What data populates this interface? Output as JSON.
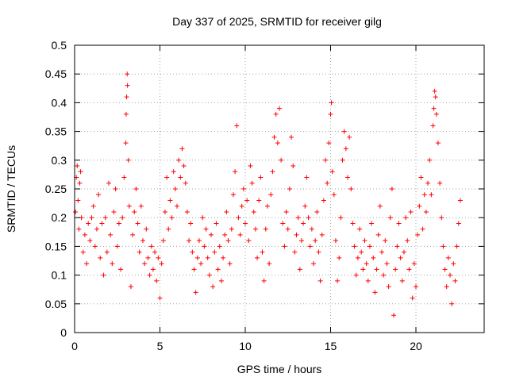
{
  "chart_data": {
    "type": "scatter",
    "title": "Day 337 of 2025, SRMTID for receiver gilg",
    "xlabel": "GPS time / hours",
    "ylabel": "SRMTID / TECUs",
    "xlim": [
      0,
      24
    ],
    "ylim": [
      0,
      0.5
    ],
    "xticks": [
      0,
      5,
      10,
      15,
      20
    ],
    "xtick_labels": [
      "0",
      "5",
      "10",
      "15",
      "20"
    ],
    "yticks": [
      0,
      0.05,
      0.1,
      0.15,
      0.2,
      0.25,
      0.3,
      0.35,
      0.4,
      0.45,
      0.5
    ],
    "ytick_labels": [
      "0",
      "0.05",
      "0.1",
      "0.15",
      "0.2",
      "0.25",
      "0.3",
      "0.35",
      "0.4",
      "0.45",
      "0.5"
    ],
    "grid": true,
    "marker": "+",
    "color": "#ff0000",
    "x_data_range": [
      0,
      22.6
    ],
    "series": [
      {
        "name": "SRMTID",
        "points": [
          [
            0.05,
            0.21
          ],
          [
            0.1,
            0.27
          ],
          [
            0.15,
            0.29
          ],
          [
            0.2,
            0.23
          ],
          [
            0.25,
            0.18
          ],
          [
            0.3,
            0.26
          ],
          [
            0.35,
            0.28
          ],
          [
            0.4,
            0.2
          ],
          [
            0.5,
            0.14
          ],
          [
            0.6,
            0.17
          ],
          [
            0.7,
            0.12
          ],
          [
            0.8,
            0.19
          ],
          [
            0.9,
            0.16
          ],
          [
            1.0,
            0.2
          ],
          [
            1.1,
            0.22
          ],
          [
            1.2,
            0.15
          ],
          [
            1.3,
            0.18
          ],
          [
            1.4,
            0.24
          ],
          [
            1.5,
            0.13
          ],
          [
            1.6,
            0.19
          ],
          [
            1.7,
            0.1
          ],
          [
            1.8,
            0.2
          ],
          [
            1.9,
            0.14
          ],
          [
            2.0,
            0.26
          ],
          [
            2.1,
            0.17
          ],
          [
            2.2,
            0.12
          ],
          [
            2.3,
            0.21
          ],
          [
            2.4,
            0.25
          ],
          [
            2.5,
            0.15
          ],
          [
            2.6,
            0.19
          ],
          [
            2.7,
            0.11
          ],
          [
            2.8,
            0.2
          ],
          [
            2.9,
            0.27
          ],
          [
            3.0,
            0.33
          ],
          [
            3.02,
            0.38
          ],
          [
            3.05,
            0.41
          ],
          [
            3.08,
            0.45
          ],
          [
            3.1,
            0.43
          ],
          [
            3.15,
            0.3
          ],
          [
            3.2,
            0.22
          ],
          [
            3.3,
            0.08
          ],
          [
            3.4,
            0.17
          ],
          [
            3.5,
            0.21
          ],
          [
            3.6,
            0.25
          ],
          [
            3.7,
            0.19
          ],
          [
            3.8,
            0.14
          ],
          [
            3.9,
            0.22
          ],
          [
            4.0,
            0.16
          ],
          [
            4.1,
            0.12
          ],
          [
            4.2,
            0.18
          ],
          [
            4.3,
            0.13
          ],
          [
            4.4,
            0.1
          ],
          [
            4.5,
            0.15
          ],
          [
            4.6,
            0.11
          ],
          [
            4.7,
            0.14
          ],
          [
            4.8,
            0.09
          ],
          [
            4.9,
            0.13
          ],
          [
            5.0,
            0.06
          ],
          [
            5.1,
            0.12
          ],
          [
            5.2,
            0.16
          ],
          [
            5.3,
            0.21
          ],
          [
            5.4,
            0.27
          ],
          [
            5.5,
            0.18
          ],
          [
            5.6,
            0.23
          ],
          [
            5.7,
            0.2
          ],
          [
            5.8,
            0.28
          ],
          [
            5.9,
            0.25
          ],
          [
            6.0,
            0.22
          ],
          [
            6.1,
            0.3
          ],
          [
            6.2,
            0.27
          ],
          [
            6.3,
            0.32
          ],
          [
            6.4,
            0.29
          ],
          [
            6.5,
            0.26
          ],
          [
            6.6,
            0.21
          ],
          [
            6.7,
            0.16
          ],
          [
            6.8,
            0.19
          ],
          [
            6.9,
            0.14
          ],
          [
            7.0,
            0.11
          ],
          [
            7.1,
            0.07
          ],
          [
            7.2,
            0.13
          ],
          [
            7.3,
            0.16
          ],
          [
            7.4,
            0.12
          ],
          [
            7.5,
            0.2
          ],
          [
            7.6,
            0.15
          ],
          [
            7.7,
            0.18
          ],
          [
            7.8,
            0.13
          ],
          [
            7.9,
            0.1
          ],
          [
            8.0,
            0.17
          ],
          [
            8.1,
            0.08
          ],
          [
            8.2,
            0.14
          ],
          [
            8.3,
            0.19
          ],
          [
            8.4,
            0.11
          ],
          [
            8.5,
            0.15
          ],
          [
            8.6,
            0.09
          ],
          [
            8.7,
            0.13
          ],
          [
            8.8,
            0.17
          ],
          [
            8.9,
            0.21
          ],
          [
            9.0,
            0.16
          ],
          [
            9.1,
            0.12
          ],
          [
            9.2,
            0.18
          ],
          [
            9.3,
            0.24
          ],
          [
            9.4,
            0.28
          ],
          [
            9.5,
            0.36
          ],
          [
            9.6,
            0.2
          ],
          [
            9.7,
            0.17
          ],
          [
            9.8,
            0.22
          ],
          [
            9.9,
            0.25
          ],
          [
            10.0,
            0.19
          ],
          [
            10.1,
            0.23
          ],
          [
            10.2,
            0.16
          ],
          [
            10.3,
            0.29
          ],
          [
            10.4,
            0.26
          ],
          [
            10.5,
            0.21
          ],
          [
            10.6,
            0.18
          ],
          [
            10.7,
            0.13
          ],
          [
            10.8,
            0.23
          ],
          [
            10.9,
            0.27
          ],
          [
            11.0,
            0.14
          ],
          [
            11.1,
            0.09
          ],
          [
            11.2,
            0.18
          ],
          [
            11.3,
            0.22
          ],
          [
            11.4,
            0.12
          ],
          [
            11.5,
            0.24
          ],
          [
            11.6,
            0.28
          ],
          [
            11.7,
            0.34
          ],
          [
            11.8,
            0.38
          ],
          [
            11.9,
            0.33
          ],
          [
            12.0,
            0.39
          ],
          [
            12.1,
            0.3
          ],
          [
            12.2,
            0.19
          ],
          [
            12.3,
            0.15
          ],
          [
            12.4,
            0.21
          ],
          [
            12.5,
            0.18
          ],
          [
            12.6,
            0.25
          ],
          [
            12.7,
            0.34
          ],
          [
            12.8,
            0.29
          ],
          [
            12.9,
            0.14
          ],
          [
            13.0,
            0.17
          ],
          [
            13.1,
            0.2
          ],
          [
            13.2,
            0.11
          ],
          [
            13.3,
            0.16
          ],
          [
            13.4,
            0.19
          ],
          [
            13.5,
            0.22
          ],
          [
            13.6,
            0.27
          ],
          [
            13.7,
            0.2
          ],
          [
            13.8,
            0.15
          ],
          [
            13.9,
            0.18
          ],
          [
            14.0,
            0.12
          ],
          [
            14.1,
            0.16
          ],
          [
            14.2,
            0.21
          ],
          [
            14.3,
            0.14
          ],
          [
            14.4,
            0.09
          ],
          [
            14.5,
            0.17
          ],
          [
            14.6,
            0.23
          ],
          [
            14.7,
            0.3
          ],
          [
            14.8,
            0.26
          ],
          [
            14.9,
            0.33
          ],
          [
            15.0,
            0.38
          ],
          [
            15.05,
            0.4
          ],
          [
            15.1,
            0.28
          ],
          [
            15.2,
            0.24
          ],
          [
            15.3,
            0.16
          ],
          [
            15.4,
            0.09
          ],
          [
            15.5,
            0.13
          ],
          [
            15.6,
            0.2
          ],
          [
            15.7,
            0.3
          ],
          [
            15.8,
            0.35
          ],
          [
            15.9,
            0.32
          ],
          [
            16.0,
            0.27
          ],
          [
            16.1,
            0.34
          ],
          [
            16.2,
            0.25
          ],
          [
            16.3,
            0.19
          ],
          [
            16.4,
            0.15
          ],
          [
            16.5,
            0.1
          ],
          [
            16.6,
            0.13
          ],
          [
            16.7,
            0.18
          ],
          [
            16.8,
            0.14
          ],
          [
            16.9,
            0.11
          ],
          [
            17.0,
            0.16
          ],
          [
            17.1,
            0.12
          ],
          [
            17.2,
            0.09
          ],
          [
            17.3,
            0.15
          ],
          [
            17.4,
            0.19
          ],
          [
            17.5,
            0.13
          ],
          [
            17.6,
            0.07
          ],
          [
            17.7,
            0.11
          ],
          [
            17.8,
            0.17
          ],
          [
            17.9,
            0.22
          ],
          [
            18.0,
            0.14
          ],
          [
            18.1,
            0.1
          ],
          [
            18.2,
            0.16
          ],
          [
            18.3,
            0.12
          ],
          [
            18.4,
            0.08
          ],
          [
            18.5,
            0.2
          ],
          [
            18.6,
            0.25
          ],
          [
            18.7,
            0.03
          ],
          [
            18.8,
            0.11
          ],
          [
            18.9,
            0.15
          ],
          [
            19.0,
            0.19
          ],
          [
            19.1,
            0.13
          ],
          [
            19.2,
            0.09
          ],
          [
            19.3,
            0.14
          ],
          [
            19.4,
            0.2
          ],
          [
            19.5,
            0.16
          ],
          [
            19.6,
            0.11
          ],
          [
            19.7,
            0.21
          ],
          [
            19.8,
            0.06
          ],
          [
            19.9,
            0.12
          ],
          [
            20.0,
            0.08
          ],
          [
            20.1,
            0.17
          ],
          [
            20.2,
            0.22
          ],
          [
            20.3,
            0.27
          ],
          [
            20.4,
            0.18
          ],
          [
            20.5,
            0.24
          ],
          [
            20.6,
            0.21
          ],
          [
            20.7,
            0.26
          ],
          [
            20.8,
            0.3
          ],
          [
            20.9,
            0.24
          ],
          [
            21.0,
            0.36
          ],
          [
            21.05,
            0.39
          ],
          [
            21.1,
            0.42
          ],
          [
            21.15,
            0.41
          ],
          [
            21.2,
            0.38
          ],
          [
            21.3,
            0.33
          ],
          [
            21.4,
            0.26
          ],
          [
            21.5,
            0.2
          ],
          [
            21.6,
            0.15
          ],
          [
            21.7,
            0.11
          ],
          [
            21.8,
            0.08
          ],
          [
            21.9,
            0.13
          ],
          [
            22.0,
            0.1
          ],
          [
            22.1,
            0.05
          ],
          [
            22.2,
            0.12
          ],
          [
            22.3,
            0.09
          ],
          [
            22.4,
            0.15
          ],
          [
            22.5,
            0.19
          ],
          [
            22.6,
            0.23
          ]
        ]
      }
    ]
  }
}
